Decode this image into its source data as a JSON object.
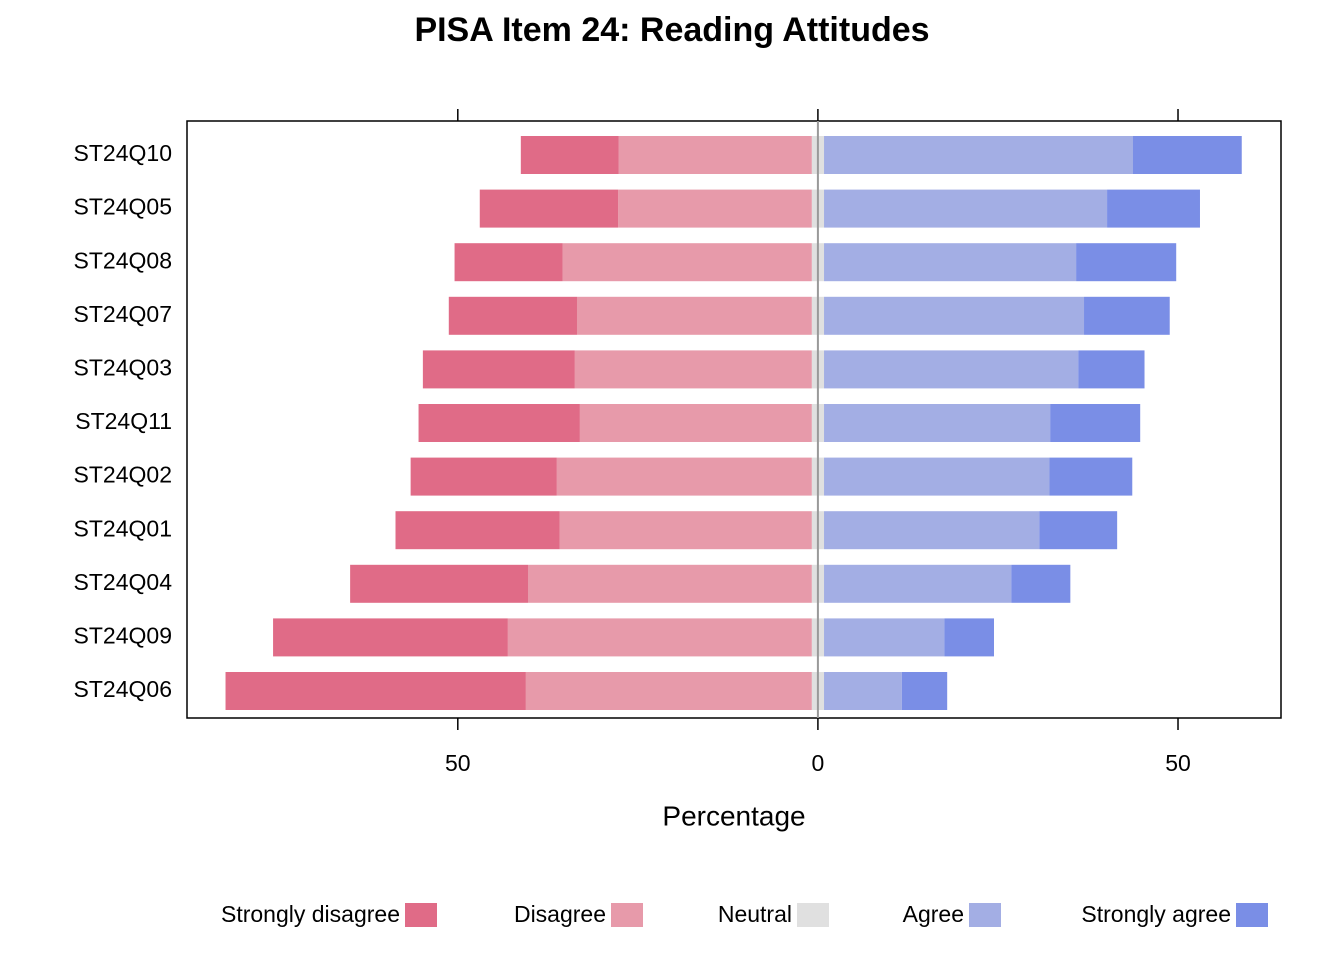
{
  "chart_data": {
    "type": "diverging-bar",
    "title": "PISA Item 24: Reading Attitudes",
    "x_label": "Percentage",
    "categories": [
      "ST24Q10",
      "ST24Q05",
      "ST24Q08",
      "ST24Q07",
      "ST24Q03",
      "ST24Q11",
      "ST24Q02",
      "ST24Q01",
      "ST24Q04",
      "ST24Q09",
      "ST24Q06"
    ],
    "series": [
      {
        "name": "Strongly disagree",
        "color": "#e06b87",
        "values": [
          13.6,
          19.2,
          15.0,
          17.8,
          21.1,
          22.4,
          20.3,
          22.8,
          24.7,
          32.6,
          41.7
        ]
      },
      {
        "name": "Disagree",
        "color": "#e79aaa",
        "values": [
          26.8,
          26.9,
          34.6,
          32.6,
          32.9,
          32.2,
          35.4,
          35.0,
          39.4,
          42.2,
          39.7
        ]
      },
      {
        "name": "Neutral",
        "color": "#e0e0e0",
        "values": [
          1.7,
          1.7,
          1.7,
          1.7,
          1.7,
          1.7,
          1.7,
          1.7,
          1.7,
          1.7,
          1.7
        ]
      },
      {
        "name": "Agree",
        "color": "#a3aee4",
        "values": [
          42.9,
          39.3,
          35.0,
          36.1,
          35.3,
          31.4,
          31.3,
          29.9,
          26.0,
          16.7,
          10.8
        ]
      },
      {
        "name": "Strongly agree",
        "color": "#7a8ee6",
        "values": [
          15.1,
          12.9,
          13.9,
          11.9,
          9.2,
          12.5,
          11.5,
          10.8,
          8.2,
          6.9,
          6.3
        ]
      }
    ],
    "xlim": [
      -87.6,
      64.3
    ],
    "xticks": [
      {
        "value": -50,
        "label": "50"
      },
      0,
      50
    ],
    "legend_position": "bottom"
  }
}
